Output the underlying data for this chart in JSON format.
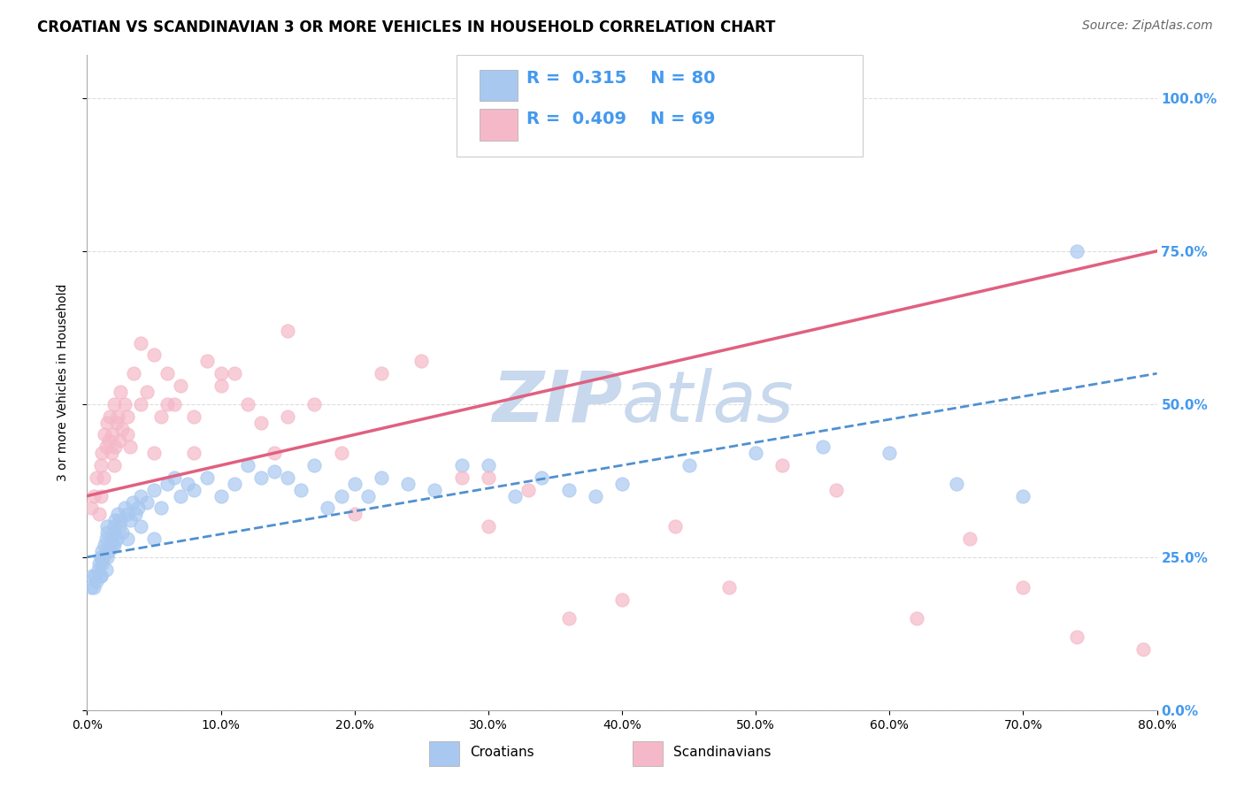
{
  "title": "CROATIAN VS SCANDINAVIAN 3 OR MORE VEHICLES IN HOUSEHOLD CORRELATION CHART",
  "source": "Source: ZipAtlas.com",
  "xlabel_ticks": [
    "0.0%",
    "10.0%",
    "20.0%",
    "30.0%",
    "40.0%",
    "50.0%",
    "60.0%",
    "70.0%",
    "80.0%"
  ],
  "ylabel_ticks": [
    "100.0%",
    "75.0%",
    "50.0%",
    "25.0%",
    "0.0%"
  ],
  "xlim": [
    0.0,
    80.0
  ],
  "ylim": [
    0.0,
    107.0
  ],
  "croatian_R": "0.315",
  "croatian_N": "80",
  "scandinavian_R": "0.409",
  "scandinavian_N": "69",
  "croatian_color": "#A8C8F0",
  "scandinavian_color": "#F5B8C8",
  "trendline_croatian_color": "#5090D0",
  "trendline_scandinavian_color": "#E06080",
  "watermark_color": "#C8D8ED",
  "background_color": "#FFFFFF",
  "grid_color": "#DDDDDD",
  "title_fontsize": 12,
  "source_fontsize": 10,
  "legend_fontsize": 14,
  "right_ytick_color": "#4499EE",
  "croatian_x": [
    0.3,
    0.4,
    0.5,
    0.6,
    0.7,
    0.8,
    0.9,
    1.0,
    1.0,
    1.1,
    1.1,
    1.2,
    1.3,
    1.4,
    1.4,
    1.5,
    1.5,
    1.6,
    1.7,
    1.8,
    1.9,
    2.0,
    2.0,
    2.1,
    2.2,
    2.3,
    2.4,
    2.5,
    2.6,
    2.8,
    3.0,
    3.2,
    3.4,
    3.6,
    3.8,
    4.0,
    4.5,
    5.0,
    5.5,
    6.0,
    6.5,
    7.0,
    7.5,
    8.0,
    9.0,
    10.0,
    11.0,
    12.0,
    13.0,
    14.0,
    15.0,
    16.0,
    17.0,
    18.0,
    19.0,
    20.0,
    21.0,
    22.0,
    24.0,
    26.0,
    28.0,
    30.0,
    32.0,
    34.0,
    36.0,
    38.0,
    40.0,
    45.0,
    50.0,
    55.0,
    60.0,
    65.0,
    70.0,
    74.0,
    1.0,
    1.5,
    2.0,
    3.0,
    4.0,
    5.0
  ],
  "croatian_y": [
    20,
    22,
    20,
    22,
    21,
    23,
    24,
    25,
    22,
    26,
    24,
    25,
    27,
    23,
    28,
    29,
    30,
    26,
    27,
    28,
    27,
    30,
    29,
    31,
    28,
    32,
    30,
    31,
    29,
    33,
    32,
    31,
    34,
    32,
    33,
    35,
    34,
    36,
    33,
    37,
    38,
    35,
    37,
    36,
    38,
    35,
    37,
    40,
    38,
    39,
    38,
    36,
    40,
    33,
    35,
    37,
    35,
    38,
    37,
    36,
    40,
    40,
    35,
    38,
    36,
    35,
    37,
    40,
    42,
    43,
    42,
    37,
    35,
    75,
    22,
    25,
    27,
    28,
    30,
    28
  ],
  "scandinavian_x": [
    0.3,
    0.5,
    0.7,
    0.9,
    1.0,
    1.1,
    1.2,
    1.3,
    1.4,
    1.5,
    1.6,
    1.7,
    1.8,
    1.9,
    2.0,
    2.1,
    2.2,
    2.3,
    2.4,
    2.5,
    2.6,
    2.8,
    3.0,
    3.2,
    3.5,
    4.0,
    4.5,
    5.0,
    5.5,
    6.0,
    6.5,
    7.0,
    8.0,
    9.0,
    10.0,
    11.0,
    12.0,
    13.0,
    14.0,
    15.0,
    17.0,
    19.0,
    22.0,
    25.0,
    28.0,
    30.0,
    33.0,
    36.0,
    40.0,
    44.0,
    48.0,
    52.0,
    56.0,
    62.0,
    66.0,
    70.0,
    74.0,
    79.0,
    1.0,
    2.0,
    3.0,
    4.0,
    5.0,
    6.0,
    8.0,
    10.0,
    15.0,
    20.0,
    30.0
  ],
  "scandinavian_y": [
    33,
    35,
    38,
    32,
    40,
    42,
    38,
    45,
    43,
    47,
    44,
    48,
    42,
    45,
    50,
    43,
    47,
    48,
    44,
    52,
    46,
    50,
    48,
    43,
    55,
    60,
    52,
    58,
    48,
    55,
    50,
    53,
    48,
    57,
    53,
    55,
    50,
    47,
    42,
    48,
    50,
    42,
    55,
    57,
    38,
    38,
    36,
    15,
    18,
    30,
    20,
    40,
    36,
    15,
    28,
    20,
    12,
    10,
    35,
    40,
    45,
    50,
    42,
    50,
    42,
    55,
    62,
    32,
    30
  ],
  "sca_trendline_x0": 0,
  "sca_trendline_y0": 35,
  "sca_trendline_x1": 80,
  "sca_trendline_y1": 75,
  "cro_trendline_x0": 0,
  "cro_trendline_y0": 25,
  "cro_trendline_x1": 80,
  "cro_trendline_y1": 55
}
